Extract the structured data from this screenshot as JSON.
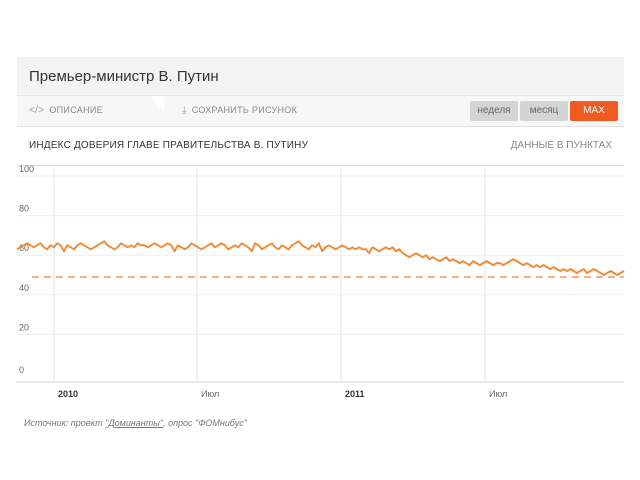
{
  "header": {
    "title": "Премьер-министр В. Путин"
  },
  "toolbar": {
    "description_label": "ОПИСАНИЕ",
    "description_icon": "code-icon",
    "save_label": "СОХРАНИТЬ РИСУНОК",
    "save_icon": "download-icon",
    "ranges": [
      {
        "label": "неделя",
        "active": false
      },
      {
        "label": "месяц",
        "active": false
      },
      {
        "label": "MAX",
        "active": true
      }
    ]
  },
  "chart_title": "ИНДЕКС ДОВЕРИЯ ГЛАВЕ ПРАВИТЕЛЬСТВА В. ПУТИНУ",
  "chart_units": "ДАННЫЕ В ПУНКТАХ",
  "source": {
    "prefix": "Источник: проект ",
    "link": "\"Доминанты\"",
    "suffix": ", опрос \"ФОМнибус\""
  },
  "colors": {
    "accent": "#f15a22",
    "line": "#f08c3a",
    "grid": "#e3e3e3"
  },
  "chart_data": {
    "type": "line",
    "title": "ИНДЕКС ДОВЕРИЯ ГЛАВЕ ПРАВИТЕЛЬСТВА В. ПУТИНУ",
    "xlabel": "",
    "ylabel": "",
    "ylim": [
      0,
      100
    ],
    "yticks": [
      0,
      20,
      40,
      60,
      80,
      100
    ],
    "x_tick_labels": [
      {
        "label": "2010",
        "bold": true
      },
      {
        "label": "Июл",
        "bold": false
      },
      {
        "label": "2011",
        "bold": true
      },
      {
        "label": "Июл",
        "bold": false
      }
    ],
    "grid": true,
    "reference_line": {
      "value": 49,
      "style": "dashed"
    },
    "series": [
      {
        "values": [
          63,
          64,
          65,
          66,
          65,
          64,
          65,
          66,
          64,
          63,
          65,
          64,
          66,
          65,
          62,
          65,
          64,
          63,
          65,
          66,
          65,
          64,
          63,
          64,
          65,
          66,
          67,
          65,
          64,
          63,
          64,
          66,
          65,
          64,
          65,
          64,
          66,
          65,
          65,
          64,
          65,
          66,
          65,
          64,
          65,
          66,
          65,
          62,
          65,
          64,
          63,
          64,
          66,
          65,
          64,
          63,
          64,
          65,
          66,
          64,
          65,
          66,
          65,
          63,
          64,
          65,
          64,
          66,
          65,
          64,
          62,
          66,
          65,
          63,
          64,
          65,
          66,
          64,
          63,
          65,
          64,
          63,
          65,
          66,
          67,
          65,
          64,
          63,
          65,
          64,
          66,
          62,
          64,
          65,
          64,
          63,
          64,
          65,
          64,
          63,
          64,
          63,
          64,
          63,
          63,
          61,
          64,
          63,
          62,
          63,
          64,
          63,
          64,
          62,
          63,
          61,
          60,
          59,
          60,
          61,
          60,
          59,
          60,
          58,
          59,
          58,
          57,
          58,
          59,
          57,
          58,
          57,
          56,
          57,
          56,
          55,
          57,
          56,
          55,
          56,
          57,
          56,
          55,
          56,
          56,
          55,
          56,
          57,
          58,
          57,
          56,
          55,
          56,
          55,
          54,
          55,
          54,
          55,
          54,
          53,
          54,
          53,
          52,
          53,
          52,
          53,
          52,
          51,
          52,
          53,
          51,
          52,
          53,
          52,
          51,
          50,
          51,
          52,
          51,
          50,
          51,
          52
        ]
      }
    ]
  }
}
